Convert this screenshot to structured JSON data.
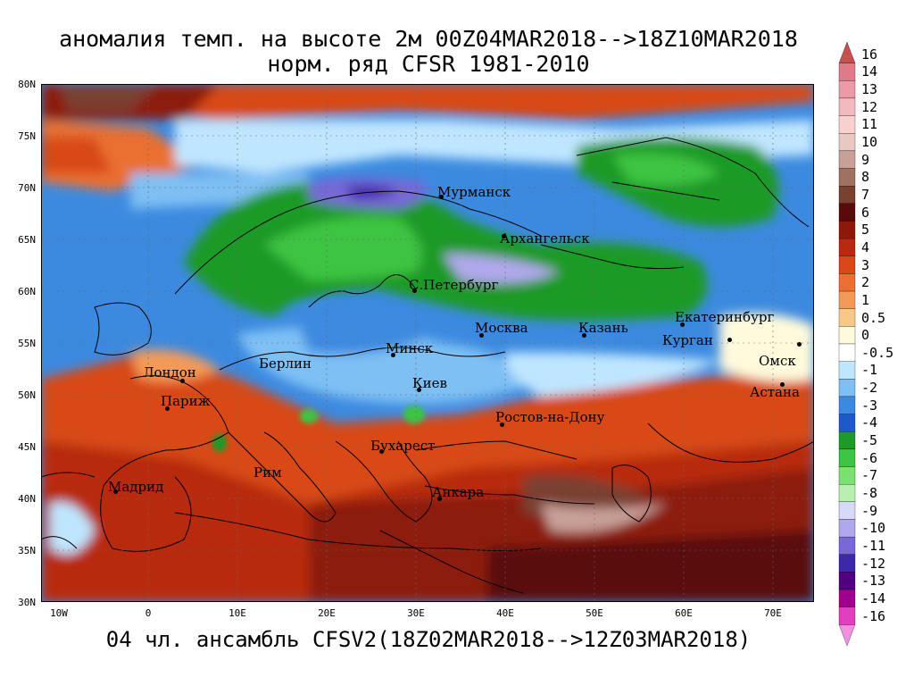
{
  "title_line1": "аномалия темп. на высоте 2м 00Z04MAR2018-->18Z10MAR2018",
  "title_line2": "норм. ряд CFSR 1981-2010",
  "subtitle": "04 чл. ансамбль CFSV2(18Z02MAR2018-->12Z03MAR2018)",
  "lat_labels": [
    "80N",
    "75N",
    "70N",
    "65N",
    "60N",
    "55N",
    "50N",
    "45N",
    "40N",
    "35N",
    "30N"
  ],
  "lon_labels": [
    "10W",
    "0",
    "10E",
    "20E",
    "30E",
    "40E",
    "50E",
    "60E",
    "70E"
  ],
  "colorbar": {
    "labels": [
      "16",
      "14",
      "13",
      "12",
      "11",
      "10",
      "9",
      "8",
      "7",
      "6",
      "5",
      "4",
      "3",
      "2",
      "1",
      "0.5",
      "0",
      "-0.5",
      "-1",
      "-2",
      "-3",
      "-4",
      "-5",
      "-6",
      "-7",
      "-8",
      "-9",
      "-10",
      "-11",
      "-12",
      "-13",
      "-14",
      "-16"
    ],
    "colors": [
      "#c85050",
      "#e07a88",
      "#ec9aa8",
      "#f4b8c0",
      "#f8d0d0",
      "#e8c8c0",
      "#c8a098",
      "#a07060",
      "#7a4030",
      "#5a0a08",
      "#8c1a0a",
      "#b82a10",
      "#d84818",
      "#ea7032",
      "#f49a58",
      "#f8c888",
      "#fffadc",
      "#ffffff",
      "#bfe6ff",
      "#7ec0f4",
      "#3c8ae0",
      "#1f58c8",
      "#1e9a28",
      "#3cc442",
      "#7ae070",
      "#b8f0b0",
      "#d8d8f8",
      "#b0a8ec",
      "#7868d8",
      "#3c28a8",
      "#500080",
      "#a00090",
      "#e040c0",
      "#f090e0"
    ]
  },
  "cities": [
    {
      "name": "Мурманск"
    },
    {
      "name": "Архангельск"
    },
    {
      "name": "С.Петербург"
    },
    {
      "name": "Москва"
    },
    {
      "name": "Казань"
    },
    {
      "name": "Екатеринбург"
    },
    {
      "name": "Курган"
    },
    {
      "name": "Омск"
    },
    {
      "name": "Астана"
    },
    {
      "name": "Минск"
    },
    {
      "name": "Берлин"
    },
    {
      "name": "Лондон"
    },
    {
      "name": "Париж"
    },
    {
      "name": "Киев"
    },
    {
      "name": "Ростов-на-Дону"
    },
    {
      "name": "Бухарест"
    },
    {
      "name": "Рим"
    },
    {
      "name": "Мадрид"
    },
    {
      "name": "Анкара"
    }
  ]
}
